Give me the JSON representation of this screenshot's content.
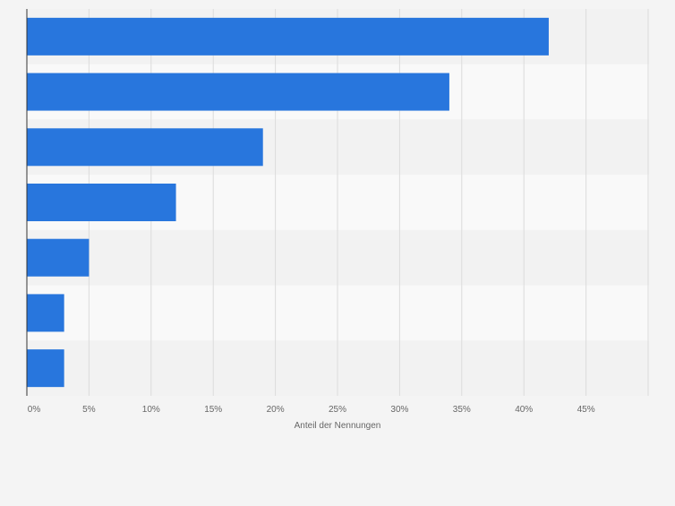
{
  "colors": {
    "background": "#f4f4f4",
    "band_light": "#f9f9f9",
    "band_dark": "#f2f2f2",
    "bar": "#2876dd",
    "grid": "#dcdcdc",
    "axis": "#333333",
    "tick_text": "#666666"
  },
  "chart_data": {
    "type": "bar",
    "orientation": "horizontal",
    "categories": [
      "",
      "",
      "",
      "",
      "",
      "",
      ""
    ],
    "values": [
      42,
      34,
      19,
      12,
      5,
      3,
      3
    ],
    "xlabel": "Anteil der Nennungen",
    "ylabel": "",
    "xlim": [
      0,
      50
    ],
    "x_ticks": [
      "0%",
      "5%",
      "10%",
      "15%",
      "20%",
      "25%",
      "30%",
      "35%",
      "40%",
      "45%"
    ],
    "grid": true,
    "legend": "none"
  }
}
